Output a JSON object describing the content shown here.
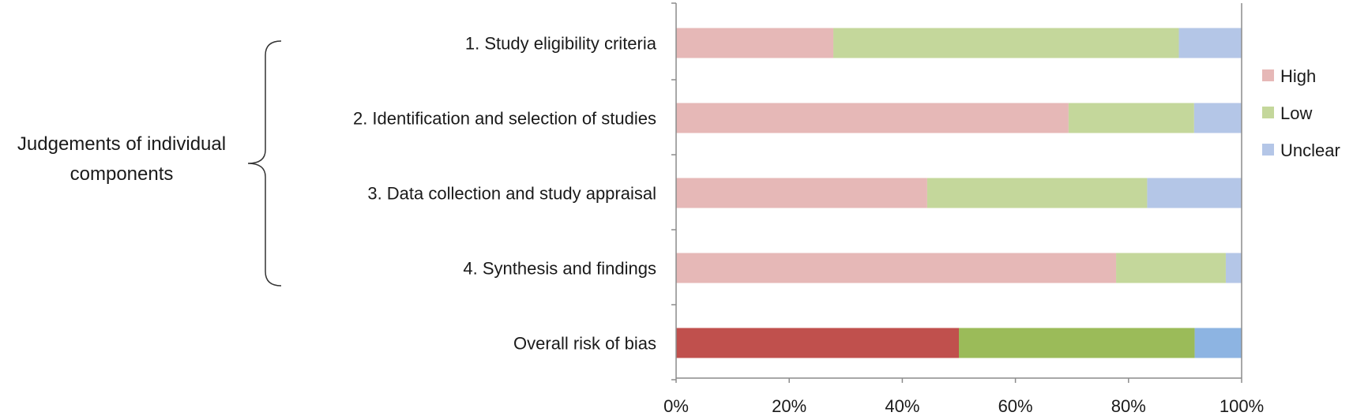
{
  "chart_data": {
    "type": "bar",
    "orientation": "horizontal",
    "stacked": "percent",
    "categories": [
      "1.      Study eligibility criteria",
      "2.  Identification and selection of studies",
      "3. Data collection and study appraisal",
      "4.  Synthesis and findings",
      "Overall risk of bias"
    ],
    "series": [
      {
        "name": "High",
        "values": [
          27.8,
          69.4,
          44.4,
          77.8,
          50.0
        ],
        "color": "#e6b8b7",
        "overall_color": "#c0504d"
      },
      {
        "name": "Low",
        "values": [
          61.1,
          22.2,
          38.9,
          19.4,
          41.7
        ],
        "color": "#c4d79b",
        "overall_color": "#9bbb59"
      },
      {
        "name": "Unclear",
        "values": [
          11.1,
          8.4,
          16.7,
          2.8,
          8.3
        ],
        "color": "#b4c6e7",
        "overall_color": "#8db4e2"
      }
    ],
    "xlim": [
      0,
      100
    ],
    "xticks": [
      "0%",
      "20%",
      "40%",
      "60%",
      "80%",
      "100%"
    ],
    "legend_position": "right",
    "grid": false,
    "group_label": {
      "lines": [
        "Judgements of individual",
        "components"
      ],
      "spans_categories": [
        0,
        1,
        2,
        3
      ]
    }
  }
}
